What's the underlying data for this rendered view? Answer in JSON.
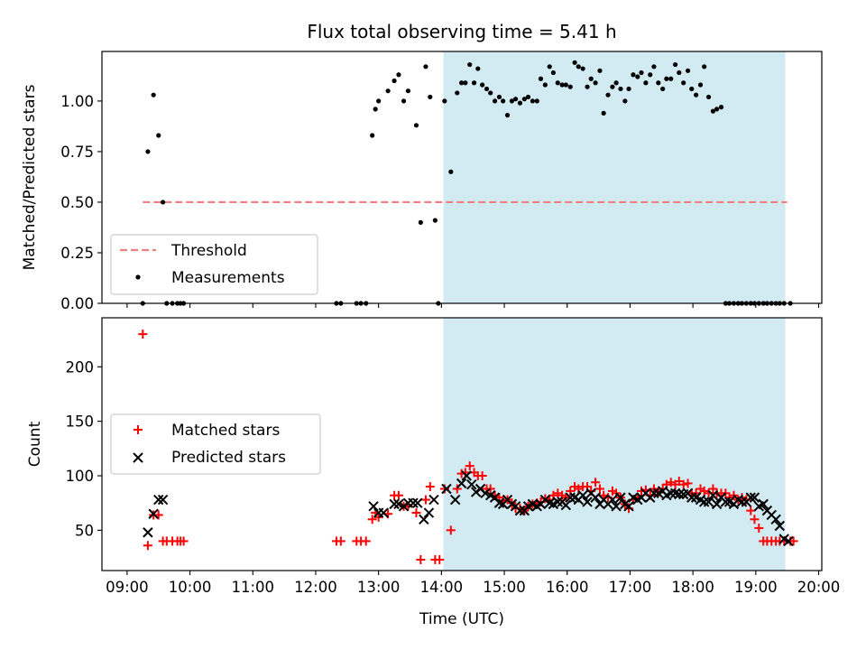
{
  "chart_data": {
    "title": "Flux total observing time = 5.41 h",
    "xlabel": "Time (UTC)",
    "x_unit": "hours",
    "xlim": [
      8.6,
      20.05
    ],
    "x_ticks": [
      {
        "value": 9,
        "label": "09:00"
      },
      {
        "value": 10,
        "label": "10:00"
      },
      {
        "value": 11,
        "label": "11:00"
      },
      {
        "value": 12,
        "label": "12:00"
      },
      {
        "value": 13,
        "label": "13:00"
      },
      {
        "value": 14,
        "label": "14:00"
      },
      {
        "value": 15,
        "label": "15:00"
      },
      {
        "value": 16,
        "label": "16:00"
      },
      {
        "value": 17,
        "label": "17:00"
      },
      {
        "value": 18,
        "label": "18:00"
      },
      {
        "value": 19,
        "label": "19:00"
      },
      {
        "value": 20,
        "label": "20:00"
      }
    ],
    "shaded_span": {
      "x_start": 14.03,
      "x_end": 19.47,
      "color": "#add8e6"
    },
    "panels": [
      {
        "type": "scatter",
        "ylabel": "Matched/Predicted stars",
        "ylim": [
          0,
          1.245
        ],
        "y_ticks": [
          {
            "value": 0,
            "label": "0.00"
          },
          {
            "value": 0.25,
            "label": "0.25"
          },
          {
            "value": 0.5,
            "label": "0.50"
          },
          {
            "value": 0.75,
            "label": "0.75"
          },
          {
            "value": 1.0,
            "label": "1.00"
          }
        ],
        "threshold": {
          "name": "Threshold",
          "value": 0.5,
          "x_start": 9.25,
          "x_end": 19.5,
          "color": "#f08080"
        },
        "legend": {
          "position": "lower-left",
          "entries": [
            "Threshold",
            "Measurements"
          ]
        },
        "series": [
          {
            "name": "Measurements",
            "marker": "dot",
            "color": "#000000",
            "x": [
              9.25,
              9.33,
              9.42,
              9.5,
              9.57,
              9.63,
              9.72,
              9.8,
              9.85,
              9.9,
              12.33,
              12.4,
              12.65,
              12.72,
              12.8,
              12.9,
              12.95,
              13.0,
              13.15,
              13.25,
              13.32,
              13.4,
              13.47,
              13.6,
              13.67,
              13.75,
              13.82,
              13.9,
              13.95,
              14.05,
              14.15,
              14.25,
              14.32,
              14.38,
              14.45,
              14.52,
              14.58,
              14.65,
              14.72,
              14.78,
              14.85,
              14.92,
              14.98,
              15.05,
              15.12,
              15.18,
              15.25,
              15.32,
              15.38,
              15.45,
              15.52,
              15.58,
              15.65,
              15.72,
              15.78,
              15.85,
              15.92,
              15.98,
              16.05,
              16.12,
              16.18,
              16.25,
              16.32,
              16.38,
              16.45,
              16.52,
              16.58,
              16.65,
              16.72,
              16.78,
              16.85,
              16.92,
              16.98,
              17.05,
              17.12,
              17.18,
              17.25,
              17.32,
              17.38,
              17.45,
              17.52,
              17.58,
              17.65,
              17.72,
              17.78,
              17.85,
              17.92,
              17.98,
              18.05,
              18.12,
              18.18,
              18.25,
              18.32,
              18.38,
              18.45,
              18.52,
              18.58,
              18.65,
              18.72,
              18.78,
              18.85,
              18.92,
              18.98,
              19.05,
              19.12,
              19.18,
              19.25,
              19.32,
              19.38,
              19.45,
              19.55
            ],
            "y": [
              0.0,
              0.75,
              1.03,
              0.83,
              0.5,
              0.0,
              0.0,
              0.0,
              0.0,
              0.0,
              0.0,
              0.0,
              0.0,
              0.0,
              0.0,
              0.83,
              0.96,
              1.0,
              1.05,
              1.1,
              1.13,
              1.0,
              1.05,
              0.88,
              0.4,
              1.17,
              1.02,
              0.41,
              0.0,
              1.0,
              0.65,
              1.04,
              1.09,
              1.09,
              1.18,
              1.09,
              1.16,
              1.08,
              1.06,
              1.04,
              1.0,
              1.02,
              1.0,
              0.93,
              1.0,
              1.01,
              0.99,
              1.01,
              1.02,
              1.0,
              1.0,
              1.11,
              1.08,
              1.17,
              1.14,
              1.09,
              1.08,
              1.08,
              1.07,
              1.19,
              1.17,
              1.16,
              1.07,
              1.11,
              1.09,
              1.15,
              0.94,
              1.03,
              1.07,
              1.09,
              1.06,
              1.0,
              1.06,
              1.13,
              1.12,
              1.14,
              1.09,
              1.13,
              1.17,
              1.09,
              1.06,
              1.11,
              1.11,
              1.18,
              1.14,
              1.09,
              1.15,
              1.06,
              1.03,
              1.08,
              1.17,
              1.02,
              0.95,
              0.96,
              0.97,
              0.0,
              0.0,
              0.0,
              0.0,
              0.0,
              0.0,
              0.0,
              0.0,
              0.0,
              0.0,
              0.0,
              0.0,
              0.0,
              0.0,
              0.0,
              0.0
            ]
          }
        ]
      },
      {
        "type": "scatter",
        "ylabel": "Count",
        "ylim": [
          13,
          245
        ],
        "y_ticks": [
          {
            "value": 50,
            "label": "50"
          },
          {
            "value": 100,
            "label": "100"
          },
          {
            "value": 150,
            "label": "150"
          },
          {
            "value": 200,
            "label": "200"
          }
        ],
        "legend": {
          "position": "center-left",
          "entries": [
            "Matched stars",
            "Predicted stars"
          ]
        },
        "series": [
          {
            "name": "Matched stars",
            "marker": "plus",
            "color": "#ff0000",
            "x": [
              9.25,
              9.33,
              9.42,
              9.5,
              9.57,
              9.63,
              9.72,
              9.8,
              9.85,
              9.9,
              12.33,
              12.4,
              12.65,
              12.72,
              12.8,
              12.9,
              12.95,
              13.0,
              13.15,
              13.25,
              13.32,
              13.4,
              13.47,
              13.6,
              13.67,
              13.75,
              13.82,
              13.9,
              13.97,
              14.05,
              14.15,
              14.25,
              14.32,
              14.38,
              14.45,
              14.52,
              14.58,
              14.65,
              14.72,
              14.78,
              14.85,
              14.92,
              14.98,
              15.05,
              15.12,
              15.18,
              15.25,
              15.32,
              15.38,
              15.45,
              15.52,
              15.58,
              15.65,
              15.72,
              15.78,
              15.85,
              15.92,
              15.98,
              16.05,
              16.12,
              16.18,
              16.25,
              16.32,
              16.38,
              16.45,
              16.52,
              16.58,
              16.65,
              16.72,
              16.78,
              16.85,
              16.92,
              16.98,
              17.05,
              17.12,
              17.18,
              17.25,
              17.32,
              17.38,
              17.45,
              17.52,
              17.58,
              17.65,
              17.72,
              17.78,
              17.85,
              17.92,
              17.98,
              18.05,
              18.12,
              18.18,
              18.25,
              18.32,
              18.38,
              18.45,
              18.52,
              18.58,
              18.65,
              18.72,
              18.78,
              18.85,
              18.92,
              18.98,
              19.05,
              19.12,
              19.18,
              19.25,
              19.32,
              19.38,
              19.45,
              19.55,
              19.6
            ],
            "y": [
              230,
              36,
              64,
              64,
              40,
              40,
              40,
              40,
              40,
              40,
              40,
              40,
              40,
              40,
              40,
              60,
              66,
              62,
              65,
              82,
              82,
              72,
              72,
              66,
              23,
              78,
              90,
              23,
              23,
              88,
              50,
              88,
              102,
              103,
              109,
              103,
              100,
              100,
              88,
              88,
              82,
              80,
              77,
              78,
              75,
              70,
              70,
              68,
              72,
              74,
              75,
              76,
              79,
              78,
              82,
              84,
              82,
              80,
              86,
              90,
              88,
              90,
              90,
              86,
              94,
              88,
              82,
              80,
              86,
              84,
              80,
              74,
              70,
              78,
              80,
              86,
              87,
              82,
              88,
              85,
              88,
              92,
              94,
              92,
              95,
              92,
              93,
              84,
              84,
              88,
              86,
              84,
              88,
              84,
              84,
              84,
              80,
              82,
              78,
              80,
              78,
              68,
              60,
              52,
              40,
              40,
              40,
              40,
              40,
              40,
              40,
              40
            ]
          },
          {
            "name": "Predicted stars",
            "marker": "x",
            "color": "#000000",
            "x": [
              9.33,
              9.42,
              9.5,
              9.57,
              12.92,
              13.0,
              13.08,
              13.25,
              13.32,
              13.4,
              13.47,
              13.55,
              13.62,
              13.72,
              13.8,
              13.88,
              14.08,
              14.22,
              14.32,
              14.4,
              14.48,
              14.55,
              14.62,
              14.7,
              14.78,
              14.85,
              14.92,
              14.98,
              15.05,
              15.12,
              15.18,
              15.25,
              15.32,
              15.38,
              15.45,
              15.52,
              15.58,
              15.65,
              15.72,
              15.78,
              15.85,
              15.92,
              15.98,
              16.05,
              16.12,
              16.18,
              16.25,
              16.32,
              16.38,
              16.45,
              16.52,
              16.58,
              16.65,
              16.72,
              16.78,
              16.85,
              16.92,
              16.98,
              17.05,
              17.12,
              17.18,
              17.25,
              17.32,
              17.38,
              17.45,
              17.52,
              17.58,
              17.65,
              17.72,
              17.78,
              17.85,
              17.92,
              17.98,
              18.05,
              18.12,
              18.18,
              18.25,
              18.32,
              18.38,
              18.45,
              18.52,
              18.58,
              18.65,
              18.72,
              18.78,
              18.85,
              18.92,
              18.98,
              19.05,
              19.12,
              19.18,
              19.25,
              19.32,
              19.38,
              19.45,
              19.52
            ],
            "y": [
              48,
              65,
              78,
              78,
              72,
              66,
              66,
              74,
              74,
              72,
              75,
              75,
              75,
              60,
              66,
              78,
              88,
              78,
              93,
              100,
              92,
              85,
              88,
              84,
              82,
              80,
              75,
              74,
              78,
              74,
              72,
              68,
              68,
              72,
              74,
              72,
              74,
              78,
              75,
              74,
              76,
              76,
              73,
              80,
              80,
              78,
              82,
              76,
              84,
              80,
              74,
              78,
              74,
              78,
              72,
              80,
              74,
              72,
              80,
              78,
              80,
              84,
              80,
              84,
              84,
              86,
              82,
              84,
              84,
              83,
              83,
              84,
              80,
              80,
              78,
              76,
              76,
              82,
              74,
              80,
              76,
              76,
              74,
              78,
              76,
              76,
              80,
              80,
              72,
              74,
              68,
              64,
              60,
              54,
              42,
              40
            ]
          }
        ]
      }
    ]
  }
}
